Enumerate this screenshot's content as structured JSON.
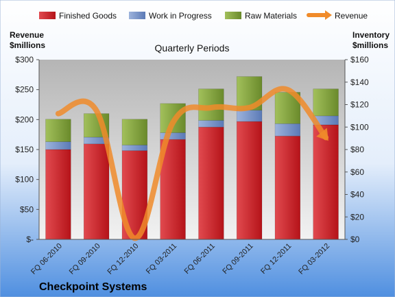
{
  "chart_data": {
    "type": "bar",
    "subtitle": "Quarterly Periods",
    "company": "Checkpoint Systems",
    "left_axis_title": [
      "Revenue",
      "$millions"
    ],
    "right_axis_title": [
      "Inventory",
      "$millions"
    ],
    "categories": [
      "FQ 06-2010",
      "FQ 09-2010",
      "FQ 12-2010",
      "FQ 03-2011",
      "FQ 06-2011",
      "FQ 09-2011",
      "FQ 12-2011",
      "FQ 03-2012"
    ],
    "y_left": {
      "min": 0,
      "max": 300,
      "ticks": [
        0,
        50,
        100,
        150,
        200,
        250,
        300
      ],
      "tick_labels": [
        "$-",
        "$50",
        "$100",
        "$150",
        "$200",
        "$250",
        "$300"
      ]
    },
    "y_right": {
      "min": 0,
      "max": 160,
      "ticks": [
        0,
        20,
        40,
        60,
        80,
        100,
        120,
        140,
        160
      ],
      "tick_labels": [
        "$0",
        "$20",
        "$40",
        "$60",
        "$80",
        "$100",
        "$120",
        "$140",
        "$160"
      ]
    },
    "stacked": true,
    "series": [
      {
        "name": "Finished Goods",
        "color": "#d8232a",
        "axis": "right",
        "values": [
          80,
          85,
          79,
          89,
          100,
          105,
          92,
          102
        ]
      },
      {
        "name": "Work in Progress",
        "color": "#7a96c8",
        "axis": "right",
        "values": [
          7,
          6,
          5,
          6,
          6,
          10,
          11,
          8
        ]
      },
      {
        "name": "Raw Materials",
        "color": "#86a83e",
        "axis": "right",
        "values": [
          20,
          21,
          23,
          26,
          28,
          30,
          28,
          24
        ]
      },
      {
        "name": "Revenue",
        "color": "#f08b2a",
        "axis": "left",
        "type": "line",
        "values": [
          210,
          215,
          2,
          195,
          220,
          220,
          250,
          170
        ]
      }
    ],
    "legend_position": "top",
    "grid": false
  }
}
